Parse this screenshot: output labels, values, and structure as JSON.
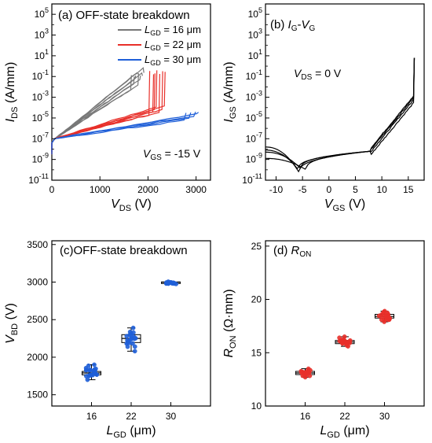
{
  "colors": {
    "gray": "#777777",
    "red": "#e8302a",
    "blue": "#1f5fd8",
    "axis": "#000000"
  },
  "chart_data": [
    {
      "panel": "(a)",
      "type": "line",
      "title": "OFF-state breakdown",
      "xlabel": {
        "main": "V",
        "sub": "DS",
        "unit": " (V)"
      },
      "ylabel": {
        "main": "I",
        "sub": "DS",
        "unit": " (A/mm)"
      },
      "xlim": [
        0,
        3300
      ],
      "ylim_log10": [
        -11,
        6
      ],
      "xticks": [
        "0",
        "1000",
        "2000",
        "3000"
      ],
      "yticks_exponents": [
        "-11",
        "-9",
        "-7",
        "-5",
        "-3",
        "-1",
        "1",
        "3",
        "5"
      ],
      "annotation": {
        "main": "V",
        "sub": "GS",
        "rest": " = -15 V"
      },
      "legend_position": "top-right",
      "series": [
        {
          "name": {
            "main": "L",
            "sub": "GD",
            "rest": " = 16 μm"
          },
          "color": "gray",
          "breakdown_V": [
            1640,
            1700,
            1730,
            1770,
            1790,
            1830,
            1870,
            1900
          ]
        },
        {
          "name": {
            "main": "L",
            "sub": "GD",
            "rest": " = 22 μm"
          },
          "color": "red",
          "breakdown_V": [
            2020,
            2100,
            2130,
            2170,
            2230,
            2290,
            2340
          ]
        },
        {
          "name": {
            "main": "L",
            "sub": "GD",
            "rest": " = 30 μm"
          },
          "color": "blue",
          "breakdown_V": [
            2750,
            2850,
            2950,
            3010
          ]
        }
      ]
    },
    {
      "panel": "(b)",
      "type": "line",
      "title": {
        "m1": "I",
        "s1": "G",
        "dash": "-",
        "m2": "V",
        "s2": "G"
      },
      "xlabel": {
        "main": "V",
        "sub": "GS",
        "unit": " (V)"
      },
      "ylabel": {
        "main": "I",
        "sub": "GS",
        "unit": " (A/mm)"
      },
      "xlim": [
        -12,
        18
      ],
      "ylim_log10": [
        -11,
        6
      ],
      "xticks": [
        "-10",
        "-5",
        "0",
        "5",
        "10",
        "15"
      ],
      "yticks_exponents": [
        "-11",
        "-9",
        "-7",
        "-5",
        "-3",
        "-1",
        "1",
        "3",
        "5"
      ],
      "annotation": {
        "main": "V",
        "sub": "DS",
        "rest": " = 0 V"
      }
    },
    {
      "panel": "(c)",
      "type": "box",
      "title": "OFF-state breakdown",
      "xlabel": {
        "main": "L",
        "sub": "GD",
        "unit": " (μm)"
      },
      "ylabel": {
        "main": "V",
        "sub": "BD",
        "unit": " (V)"
      },
      "categories": [
        "16",
        "22",
        "30"
      ],
      "ylim": [
        1350,
        3550
      ],
      "yticks": [
        "1500",
        "2000",
        "2500",
        "3000",
        "3500"
      ],
      "color": "blue",
      "boxes": [
        {
          "category": "16",
          "min": 1700,
          "q1": 1765,
          "median": 1790,
          "q3": 1810,
          "max": 1900
        },
        {
          "category": "22",
          "min": 2080,
          "q1": 2195,
          "median": 2250,
          "q3": 2300,
          "max": 2390
        },
        {
          "category": "30",
          "min": 2975,
          "q1": 2990,
          "median": 2998,
          "q3": 3002,
          "max": 3005
        }
      ]
    },
    {
      "panel": "(d)",
      "type": "box",
      "title": {
        "main": "R",
        "sub": "ON"
      },
      "xlabel": {
        "main": "L",
        "sub": "GD",
        "unit": " (μm)"
      },
      "ylabel": {
        "main": "R",
        "sub": "ON",
        "unit": " (Ω·mm)"
      },
      "categories": [
        "16",
        "22",
        "30"
      ],
      "ylim": [
        10,
        25.5
      ],
      "yticks": [
        "10",
        "15",
        "20",
        "25"
      ],
      "color": "red",
      "boxes": [
        {
          "category": "16",
          "min": 12.7,
          "q1": 12.95,
          "median": 13.1,
          "q3": 13.25,
          "max": 13.5
        },
        {
          "category": "22",
          "min": 15.6,
          "q1": 15.85,
          "median": 16.0,
          "q3": 16.15,
          "max": 16.5
        },
        {
          "category": "30",
          "min": 17.9,
          "q1": 18.25,
          "median": 18.4,
          "q3": 18.6,
          "max": 18.9
        }
      ]
    }
  ]
}
